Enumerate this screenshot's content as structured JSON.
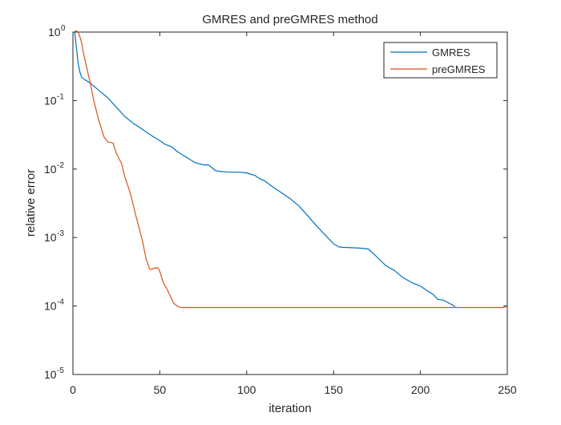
{
  "chart_data": {
    "type": "line",
    "title": "GMRES and preGMRES method",
    "xlabel": "iteration",
    "ylabel": "relative error",
    "xlim": [
      0,
      250
    ],
    "ylim": [
      1e-05,
      1
    ],
    "yscale": "log",
    "grid": false,
    "legend_position": "top-right",
    "x_ticks": [
      "0",
      "50",
      "100",
      "150",
      "200",
      "250"
    ],
    "y_ticks": [
      {
        "base": "10",
        "exp": "-5"
      },
      {
        "base": "10",
        "exp": "-4"
      },
      {
        "base": "10",
        "exp": "-3"
      },
      {
        "base": "10",
        "exp": "-2"
      },
      {
        "base": "10",
        "exp": "-1"
      },
      {
        "base": "10",
        "exp": "0"
      }
    ],
    "series": [
      {
        "name": "GMRES",
        "color": "#0072BD",
        "x": [
          1,
          2,
          3,
          4,
          5,
          7,
          10,
          15,
          20,
          25,
          30,
          35,
          40,
          45,
          50,
          53,
          55,
          57,
          60,
          65,
          70,
          75,
          78,
          80,
          82,
          85,
          90,
          95,
          100,
          105,
          108,
          110,
          115,
          120,
          125,
          130,
          135,
          140,
          145,
          150,
          153,
          155,
          160,
          165,
          170,
          173,
          175,
          180,
          185,
          190,
          195,
          200,
          205,
          207,
          210,
          213,
          215,
          218,
          220
        ],
        "y": [
          1,
          0.6,
          0.35,
          0.26,
          0.22,
          0.2,
          0.18,
          0.14,
          0.11,
          0.08,
          0.058,
          0.046,
          0.038,
          0.031,
          0.026,
          0.023,
          0.022,
          0.021,
          0.018,
          0.015,
          0.0125,
          0.0115,
          0.0115,
          0.0105,
          0.0095,
          0.0092,
          0.009,
          0.009,
          0.0088,
          0.008,
          0.0071,
          0.0068,
          0.0055,
          0.0045,
          0.0037,
          0.0029,
          0.0021,
          0.0015,
          0.0011,
          0.00081,
          0.00073,
          0.00072,
          0.00071,
          0.0007,
          0.00068,
          0.00058,
          0.00052,
          0.00039,
          0.00033,
          0.00026,
          0.00022,
          0.000195,
          0.00016,
          0.00015,
          0.000125,
          0.000122,
          0.000115,
          0.000105,
          9.8e-05
        ]
      },
      {
        "name": "preGMRES",
        "color": "#D95319",
        "x": [
          1,
          2,
          3,
          4,
          5,
          6,
          8,
          10,
          12,
          15,
          18,
          20,
          23,
          25,
          28,
          30,
          33,
          36,
          38,
          40,
          42,
          44,
          45,
          47,
          49,
          50,
          52,
          54,
          56,
          58,
          60,
          62,
          70,
          100,
          150,
          200,
          248,
          250
        ],
        "y": [
          1,
          1.05,
          1,
          0.85,
          0.7,
          0.5,
          0.3,
          0.18,
          0.1,
          0.05,
          0.029,
          0.025,
          0.024,
          0.017,
          0.012,
          0.0075,
          0.0045,
          0.0022,
          0.0014,
          0.0009,
          0.0005,
          0.00035,
          0.00034,
          0.00036,
          0.00036,
          0.00032,
          0.00022,
          0.00018,
          0.00014,
          0.00011,
          0.0001,
          9.5e-05,
          9.5e-05,
          9.5e-05,
          9.5e-05,
          9.5e-05,
          9.5e-05,
          0.0001
        ]
      }
    ]
  }
}
